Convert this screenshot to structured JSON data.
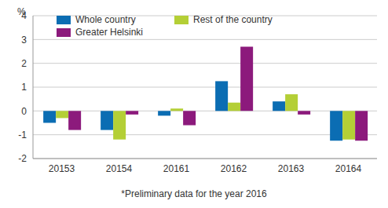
{
  "chart_data": {
    "type": "bar",
    "y_label": "%",
    "annotation": "*Preliminary data for the year 2016",
    "categories": [
      "20153",
      "20154",
      "20161",
      "20162",
      "20163",
      "20164"
    ],
    "series": [
      {
        "name": "Whole country",
        "color": "#0b6db3",
        "values": [
          -0.5,
          -0.8,
          -0.2,
          1.25,
          0.4,
          -1.25
        ]
      },
      {
        "name": "Rest of the country",
        "color": "#b4cf36",
        "values": [
          -0.3,
          -1.2,
          0.1,
          0.35,
          0.7,
          -1.2
        ]
      },
      {
        "name": "Greater Helsinki",
        "color": "#8c1a7c",
        "values": [
          -0.8,
          -0.15,
          -0.6,
          2.7,
          -0.15,
          -1.25
        ]
      }
    ],
    "ylim": [
      -2,
      4
    ],
    "yticks": [
      -2,
      -1,
      0,
      1,
      2,
      3,
      4
    ],
    "grid": true,
    "legend": "top-left"
  }
}
